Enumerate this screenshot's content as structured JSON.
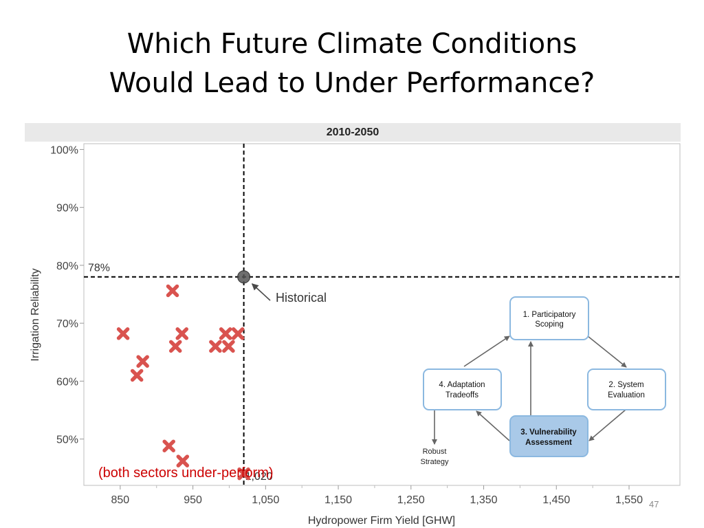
{
  "slide": {
    "title_line1": "Which Future Climate Conditions",
    "title_line2": "Would Lead to Under Performance?",
    "number": "47"
  },
  "colors": {
    "marker": "#d9534f",
    "box_border": "#8bb8e0",
    "box_fill_highlight": "#a9c9e8",
    "arrow": "#666666"
  },
  "chart_data": {
    "type": "scatter",
    "panel_title": "2010-2050",
    "xlabel": "Hydropower Firm Yield [GHW]",
    "ylabel": "Irrigation Reliability",
    "xlim": [
      800,
      1620
    ],
    "ylim": [
      42,
      101
    ],
    "x_ticks": [
      {
        "value": 850,
        "label": "850"
      },
      {
        "value": 950,
        "label": "950"
      },
      {
        "value": 1050,
        "label": "1,050"
      },
      {
        "value": 1150,
        "label": "1,150"
      },
      {
        "value": 1250,
        "label": "1,250"
      },
      {
        "value": 1350,
        "label": "1,350"
      },
      {
        "value": 1450,
        "label": "1,450"
      },
      {
        "value": 1550,
        "label": "1,550"
      }
    ],
    "y_ticks": [
      {
        "value": 100,
        "label": "100%"
      },
      {
        "value": 90,
        "label": "90%"
      },
      {
        "value": 80,
        "label": "80%"
      },
      {
        "value": 70,
        "label": "70%"
      },
      {
        "value": 60,
        "label": "60%"
      },
      {
        "value": 50,
        "label": "50%"
      }
    ],
    "reference_lines": {
      "x": 1020,
      "x_label": "1,020",
      "y": 78,
      "y_label": "78%"
    },
    "historical": {
      "x": 1020,
      "y": 78,
      "label": "Historical"
    },
    "points": [
      {
        "x": 854,
        "y": 68.2
      },
      {
        "x": 873,
        "y": 61.0
      },
      {
        "x": 881,
        "y": 63.4
      },
      {
        "x": 917,
        "y": 48.8
      },
      {
        "x": 922,
        "y": 75.6
      },
      {
        "x": 926,
        "y": 66.0
      },
      {
        "x": 935,
        "y": 68.2
      },
      {
        "x": 936,
        "y": 46.2
      },
      {
        "x": 981,
        "y": 66.0
      },
      {
        "x": 995,
        "y": 68.2
      },
      {
        "x": 999,
        "y": 66.0
      },
      {
        "x": 1012,
        "y": 68.2
      },
      {
        "x": 1020,
        "y": 44.0
      }
    ],
    "annotation": "(both sectors under-perform)"
  },
  "diagram": {
    "box1": {
      "line1": "1. Participatory",
      "line2": "Scoping"
    },
    "box2": {
      "line1": "2. System",
      "line2": "Evaluation"
    },
    "box3": {
      "line1": "3. Vulnerability",
      "line2": "Assessment"
    },
    "box4": {
      "line1": "4. Adaptation",
      "line2": "Tradeoffs"
    },
    "robust": {
      "line1": "Robust",
      "line2": "Strategy"
    }
  }
}
